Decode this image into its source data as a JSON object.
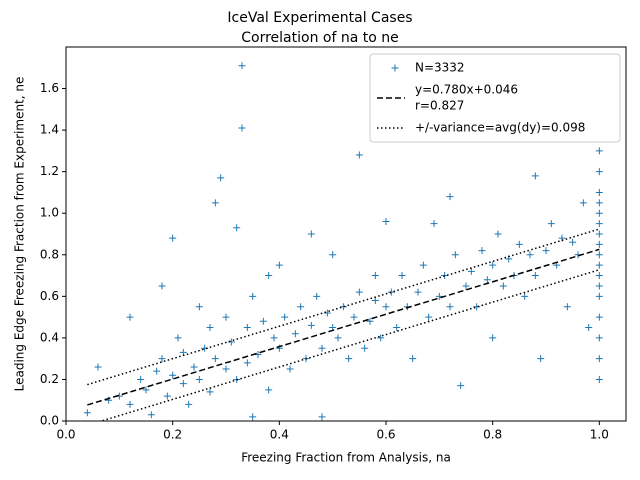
{
  "chart_data": {
    "type": "scatter",
    "title": [
      "IceVal Experimental Cases",
      "Correlation of na to ne"
    ],
    "xlabel": "Freezing Fraction from Analysis, na",
    "ylabel": "Leading Edge Freezing Fraction from Experiment, ne",
    "xlim": [
      0,
      1.05
    ],
    "ylim": [
      0,
      1.8
    ],
    "xticks": [
      {
        "value": 0,
        "label": "0.0"
      },
      0.2,
      0.4,
      0.6,
      0.8,
      {
        "value": 1,
        "label": "1.0"
      }
    ],
    "yticks": [
      {
        "value": 0,
        "label": "0.0"
      },
      0.2,
      0.4,
      0.6,
      0.8,
      {
        "value": 1,
        "label": "1.0"
      },
      1.2,
      1.4,
      1.6
    ],
    "legend": "upper right",
    "series": [
      {
        "name": [
          "N=3332"
        ],
        "style": "plus",
        "color": "#1f77b4",
        "x": [
          0.04,
          0.06,
          0.08,
          0.1,
          0.12,
          0.12,
          0.14,
          0.15,
          0.16,
          0.17,
          0.18,
          0.18,
          0.19,
          0.2,
          0.2,
          0.21,
          0.22,
          0.22,
          0.23,
          0.24,
          0.25,
          0.25,
          0.26,
          0.27,
          0.27,
          0.28,
          0.28,
          0.29,
          0.3,
          0.3,
          0.31,
          0.32,
          0.32,
          0.33,
          0.33,
          0.34,
          0.34,
          0.35,
          0.35,
          0.36,
          0.37,
          0.38,
          0.38,
          0.39,
          0.4,
          0.4,
          0.41,
          0.42,
          0.43,
          0.44,
          0.45,
          0.46,
          0.46,
          0.47,
          0.48,
          0.48,
          0.49,
          0.5,
          0.5,
          0.51,
          0.52,
          0.53,
          0.54,
          0.55,
          0.55,
          0.56,
          0.57,
          0.58,
          0.58,
          0.59,
          0.6,
          0.6,
          0.61,
          0.62,
          0.63,
          0.64,
          0.65,
          0.66,
          0.67,
          0.68,
          0.69,
          0.7,
          0.71,
          0.72,
          0.72,
          0.73,
          0.74,
          0.75,
          0.76,
          0.77,
          0.78,
          0.79,
          0.8,
          0.8,
          0.81,
          0.82,
          0.83,
          0.84,
          0.85,
          0.86,
          0.87,
          0.88,
          0.88,
          0.89,
          0.9,
          0.91,
          0.92,
          0.93,
          0.94,
          0.95,
          0.96,
          0.97,
          0.98,
          1.0,
          1.0,
          1.0,
          1.0,
          1.0,
          1.0,
          1.0,
          1.0,
          1.0,
          1.0,
          1.0,
          1.0,
          1.0,
          1.0,
          1.0,
          1.0,
          1.0
        ],
        "values": [
          0.04,
          0.26,
          0.1,
          0.12,
          0.5,
          0.08,
          0.2,
          0.15,
          0.03,
          0.24,
          0.65,
          0.3,
          0.12,
          0.22,
          0.88,
          0.4,
          0.18,
          0.33,
          0.08,
          0.26,
          0.55,
          0.2,
          0.35,
          0.45,
          0.14,
          0.3,
          1.05,
          1.17,
          0.25,
          0.5,
          0.38,
          0.2,
          0.93,
          1.71,
          1.41,
          0.45,
          0.28,
          0.6,
          0.02,
          0.32,
          0.48,
          0.15,
          0.7,
          0.4,
          0.35,
          0.75,
          0.5,
          0.25,
          0.42,
          0.55,
          0.3,
          0.46,
          0.9,
          0.6,
          0.35,
          0.02,
          0.52,
          0.45,
          0.8,
          0.4,
          0.55,
          0.3,
          0.5,
          1.28,
          0.62,
          0.35,
          0.48,
          0.7,
          0.58,
          0.4,
          0.55,
          0.96,
          0.62,
          0.45,
          0.7,
          0.55,
          0.3,
          0.62,
          0.75,
          0.5,
          0.95,
          0.6,
          0.7,
          0.55,
          1.08,
          0.8,
          0.17,
          0.65,
          0.72,
          0.55,
          0.82,
          0.68,
          0.4,
          0.75,
          0.9,
          0.65,
          0.78,
          0.7,
          0.85,
          0.6,
          0.8,
          1.18,
          0.7,
          0.3,
          0.82,
          0.95,
          0.75,
          0.88,
          0.55,
          0.86,
          0.8,
          1.05,
          0.45,
          0.2,
          0.3,
          0.4,
          0.5,
          0.6,
          0.65,
          0.7,
          0.75,
          0.8,
          0.85,
          0.9,
          0.95,
          1.0,
          1.05,
          1.1,
          1.2,
          1.3
        ]
      },
      {
        "name": [
          "y=0.780x+0.046",
          "r=0.827"
        ],
        "style": "dashed",
        "color": "#000000",
        "x": [
          0.04,
          1.0
        ],
        "values": [
          0.0772,
          0.826
        ]
      },
      {
        "name": [
          "+/-variance=avg(dy)=0.098"
        ],
        "style": "dotted",
        "color": "#000000",
        "x": [
          0.04,
          1.0
        ],
        "values": [
          0.1752,
          0.924
        ]
      },
      {
        "style": "dotted",
        "color": "#000000",
        "x": [
          0.04,
          1.0
        ],
        "values": [
          -0.0208,
          0.728
        ]
      }
    ]
  }
}
